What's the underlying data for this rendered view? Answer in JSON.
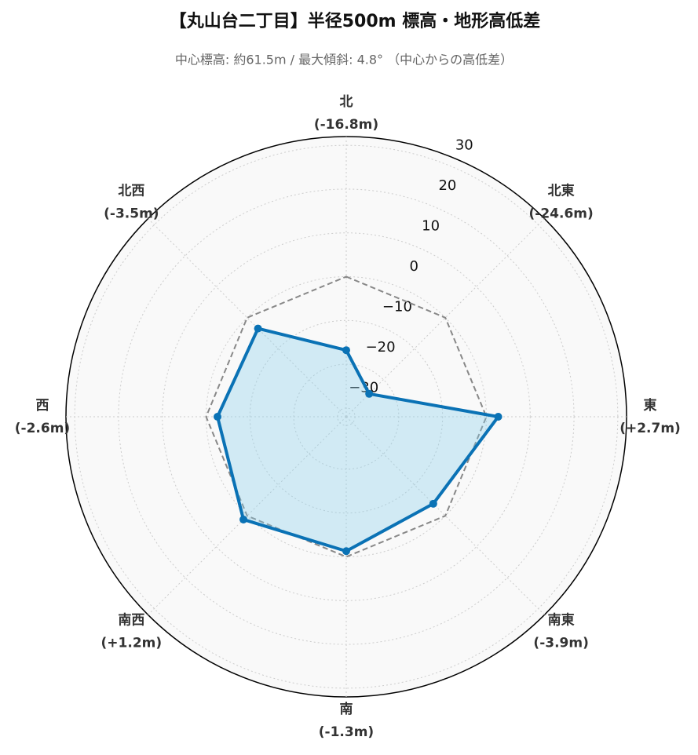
{
  "chart_data": {
    "type": "radar",
    "title": "【丸山台二丁目】半径500m 標高・地形高低差",
    "subtitle": "中心標高: 約61.5m / 最大傾斜: 4.8° （中心からの高低差）",
    "categories": [
      "北",
      "北東",
      "東",
      "南東",
      "南",
      "南西",
      "西",
      "北西"
    ],
    "values": [
      -16.8,
      -24.6,
      2.7,
      -3.9,
      -1.3,
      1.2,
      -2.6,
      -3.5
    ],
    "value_labels": [
      "(-16.8m)",
      "(-24.6m)",
      "(+2.7m)",
      "(-3.9m)",
      "(-1.3m)",
      "(+1.2m)",
      "(-2.6m)",
      "(-3.5m)"
    ],
    "color": "#0a72b5",
    "rlim": [
      -32,
      32
    ],
    "rticks": [
      {
        "value": -30,
        "label": "−30"
      },
      {
        "value": -20,
        "label": "−20"
      },
      {
        "value": -10,
        "label": "−10"
      },
      0,
      10,
      20,
      30
    ],
    "grid": true
  }
}
